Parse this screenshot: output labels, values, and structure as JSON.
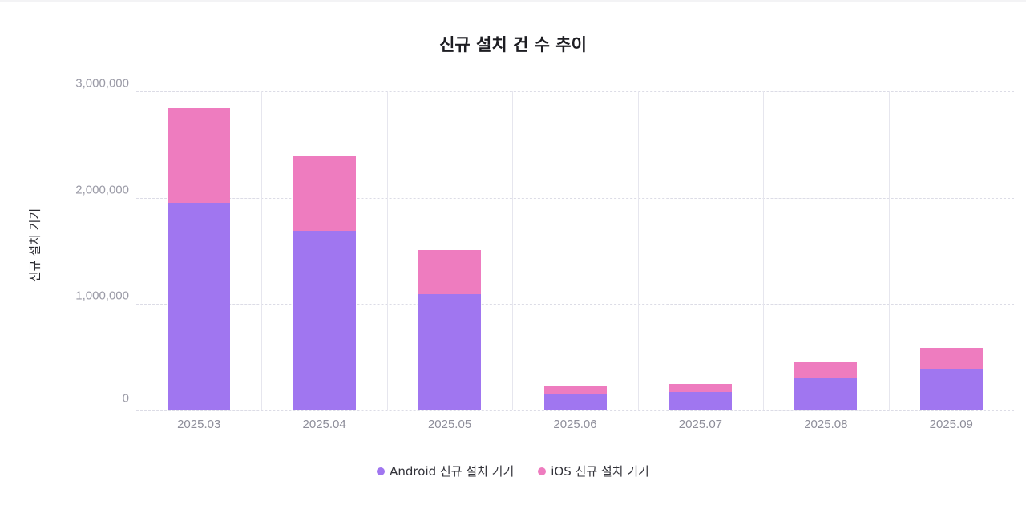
{
  "title": "신규 설치 건 수 추이",
  "y_axis_label": "신규 설치 기기",
  "y_ticks": [
    "3,000,000",
    "2,000,000",
    "1,000,000",
    "0"
  ],
  "legend": [
    {
      "label": "Android 신규 설치 기기",
      "color": "#a076f0"
    },
    {
      "label": "iOS 신규 설치 기기",
      "color": "#ee7cbf"
    }
  ],
  "colors": {
    "android": "#a076f0",
    "ios": "#ee7cbf"
  },
  "chart_data": {
    "type": "bar",
    "stacked": true,
    "title": "신규 설치 건 수 추이",
    "xlabel": "",
    "ylabel": "신규 설치 기기",
    "ylim": [
      0,
      3000000
    ],
    "y_ticks": [
      0,
      1000000,
      2000000,
      3000000
    ],
    "grid": true,
    "legend_position": "bottom",
    "categories": [
      "2025.03",
      "2025.04",
      "2025.05",
      "2025.06",
      "2025.07",
      "2025.08",
      "2025.09"
    ],
    "series": [
      {
        "name": "Android 신규 설치 기기",
        "color": "#a076f0",
        "values": [
          1950000,
          1690000,
          1090000,
          160000,
          170000,
          300000,
          390000
        ]
      },
      {
        "name": "iOS 신규 설치 기기",
        "color": "#ee7cbf",
        "values": [
          890000,
          700000,
          420000,
          70000,
          80000,
          150000,
          200000
        ]
      }
    ]
  }
}
